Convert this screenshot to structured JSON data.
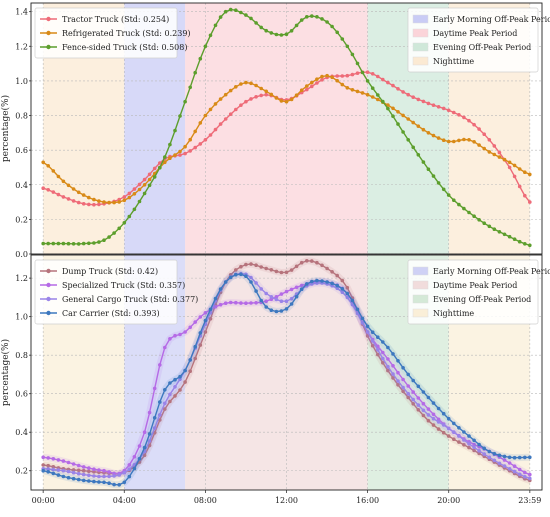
{
  "chart_data": [
    {
      "type": "line",
      "panel": "top",
      "ylabel": "percentage(%)",
      "ylim": [
        0.0,
        1.45
      ],
      "yticks": [
        "0.0",
        "0.2",
        "0.4",
        "0.6",
        "0.8",
        "1.0",
        "1.2",
        "1.4"
      ],
      "ytick_values": [
        0.0,
        0.2,
        0.4,
        0.6,
        0.8,
        1.0,
        1.2,
        1.4
      ],
      "xlim_hours": [
        -0.6,
        24.6
      ],
      "grid": true,
      "legend_series_placement": "top-left",
      "legend_periods_placement": "top-right",
      "periods": [
        {
          "label": "Early Morning Off-Peak Period",
          "start": 4,
          "end": 7,
          "color": "#c9ccf5"
        },
        {
          "label": "Daytime Peak Period",
          "start": 7,
          "end": 16,
          "color": "#fbd4d9"
        },
        {
          "label": "Evening Off-Peak Period",
          "start": 16,
          "end": 20,
          "color": "#cfe8d9"
        },
        {
          "label": "Nighttime",
          "start": 0,
          "end": 4,
          "color": "#fbead3"
        },
        {
          "label": "",
          "start": 20,
          "end": 24,
          "color": "#fbead3"
        }
      ],
      "series": [
        {
          "name": "Tractor Truck (Std: 0.254)",
          "color": "#ee6b78",
          "x": [
            0,
            1,
            2,
            3,
            4,
            5,
            6,
            7,
            8,
            9,
            10,
            11,
            12,
            13,
            14,
            15,
            16,
            17,
            18,
            19,
            20,
            21,
            22,
            23,
            24
          ],
          "values": [
            0.38,
            0.33,
            0.29,
            0.29,
            0.33,
            0.43,
            0.55,
            0.58,
            0.66,
            0.78,
            0.88,
            0.92,
            0.89,
            0.95,
            1.02,
            1.03,
            1.05,
            0.99,
            0.92,
            0.87,
            0.83,
            0.77,
            0.66,
            0.5,
            0.3
          ]
        },
        {
          "name": "Refrigerated Truck (Std: 0.239)",
          "color": "#d88a17",
          "x": [
            0,
            1,
            2,
            3,
            4,
            5,
            6,
            7,
            8,
            9,
            10,
            11,
            12,
            13,
            14,
            15,
            16,
            17,
            18,
            19,
            20,
            21,
            22,
            23,
            24
          ],
          "values": [
            0.53,
            0.42,
            0.34,
            0.3,
            0.31,
            0.4,
            0.53,
            0.62,
            0.8,
            0.92,
            0.99,
            0.94,
            0.88,
            0.97,
            1.03,
            0.96,
            0.92,
            0.86,
            0.78,
            0.7,
            0.65,
            0.66,
            0.59,
            0.53,
            0.46
          ]
        },
        {
          "name": "Fence-sided Truck (Std: 0.508)",
          "color": "#5c9e2c",
          "x": [
            0,
            1,
            2,
            3,
            4,
            5,
            6,
            7,
            8,
            9,
            10,
            11,
            12,
            13,
            14,
            15,
            16,
            17,
            18,
            19,
            20,
            21,
            22,
            23,
            24
          ],
          "values": [
            0.06,
            0.06,
            0.06,
            0.08,
            0.18,
            0.35,
            0.56,
            0.88,
            1.2,
            1.4,
            1.38,
            1.29,
            1.27,
            1.37,
            1.34,
            1.2,
            1.0,
            0.84,
            0.66,
            0.49,
            0.34,
            0.24,
            0.16,
            0.1,
            0.05
          ]
        }
      ]
    },
    {
      "type": "line",
      "panel": "bottom",
      "ylabel": "percentage(%)",
      "ylim": [
        0.1,
        1.32
      ],
      "yticks": [
        "0.2",
        "0.4",
        "0.6",
        "0.8",
        "1.0",
        "1.2"
      ],
      "ytick_values": [
        0.2,
        0.4,
        0.6,
        0.8,
        1.0,
        1.2
      ],
      "xlim_hours": [
        -0.6,
        24.6
      ],
      "xticks": [
        "00:00",
        "04:00",
        "08:00",
        "12:00",
        "16:00",
        "20:00",
        "23:59"
      ],
      "xtick_values": [
        0,
        4,
        8,
        12,
        16,
        20,
        24
      ],
      "grid": true,
      "legend_series_placement": "top-left",
      "legend_periods_placement": "top-right",
      "periods": [
        {
          "label": "Early Morning Off-Peak Period",
          "start": 4,
          "end": 7,
          "color": "#cfd1f5"
        },
        {
          "label": "Daytime Peak Period",
          "start": 7,
          "end": 16,
          "color": "#f1dcdc"
        },
        {
          "label": "Evening Off-Peak Period",
          "start": 16,
          "end": 20,
          "color": "#d4e9d7"
        },
        {
          "label": "Nighttime",
          "start": 0,
          "end": 4,
          "color": "#faefd8"
        },
        {
          "label": "",
          "start": 20,
          "end": 24,
          "color": "#faefd8"
        }
      ],
      "series": [
        {
          "name": "Dump Truck (Std: 0.42)",
          "color": "#b6737c",
          "x": [
            0,
            1,
            2,
            3,
            4,
            5,
            6,
            7,
            8,
            9,
            10,
            11,
            12,
            13,
            14,
            15,
            16,
            17,
            18,
            19,
            20,
            21,
            22,
            23,
            24
          ],
          "values": [
            0.23,
            0.21,
            0.2,
            0.19,
            0.19,
            0.28,
            0.52,
            0.66,
            0.92,
            1.18,
            1.27,
            1.25,
            1.23,
            1.29,
            1.25,
            1.15,
            0.9,
            0.72,
            0.58,
            0.46,
            0.38,
            0.32,
            0.26,
            0.2,
            0.15
          ]
        },
        {
          "name": "Specialized  Truck (Std: 0.357)",
          "color": "#b56ae6",
          "x": [
            0,
            1,
            2,
            3,
            4,
            5,
            6,
            7,
            8,
            9,
            10,
            11,
            12,
            13,
            14,
            15,
            16,
            17,
            18,
            19,
            20,
            21,
            22,
            23,
            24
          ],
          "values": [
            0.27,
            0.25,
            0.22,
            0.2,
            0.2,
            0.4,
            0.84,
            0.92,
            1.02,
            1.07,
            1.07,
            1.08,
            1.13,
            1.17,
            1.18,
            1.12,
            0.92,
            0.78,
            0.64,
            0.52,
            0.42,
            0.35,
            0.3,
            0.24,
            0.18
          ]
        },
        {
          "name": "General Cargo Truck (Std: 0.377)",
          "color": "#9a84e8",
          "x": [
            0,
            1,
            2,
            3,
            4,
            5,
            6,
            7,
            8,
            9,
            10,
            11,
            12,
            13,
            14,
            15,
            16,
            17,
            18,
            19,
            20,
            21,
            22,
            23,
            24
          ],
          "values": [
            0.21,
            0.2,
            0.18,
            0.17,
            0.19,
            0.3,
            0.55,
            0.72,
            0.96,
            1.18,
            1.22,
            1.12,
            1.08,
            1.16,
            1.17,
            1.1,
            0.92,
            0.74,
            0.6,
            0.49,
            0.42,
            0.34,
            0.27,
            0.21,
            0.16
          ]
        },
        {
          "name": "Car Carrier (Std: 0.393)",
          "color": "#3d78bf",
          "x": [
            0,
            1,
            2,
            3,
            4,
            5,
            6,
            7,
            8,
            9,
            10,
            11,
            12,
            13,
            14,
            15,
            16,
            17,
            18,
            19,
            20,
            21,
            22,
            23,
            24
          ],
          "values": [
            0.2,
            0.17,
            0.15,
            0.14,
            0.14,
            0.32,
            0.62,
            0.72,
            0.98,
            1.18,
            1.21,
            1.05,
            1.04,
            1.17,
            1.18,
            1.12,
            0.95,
            0.84,
            0.7,
            0.58,
            0.47,
            0.38,
            0.3,
            0.27,
            0.27
          ]
        }
      ]
    }
  ]
}
